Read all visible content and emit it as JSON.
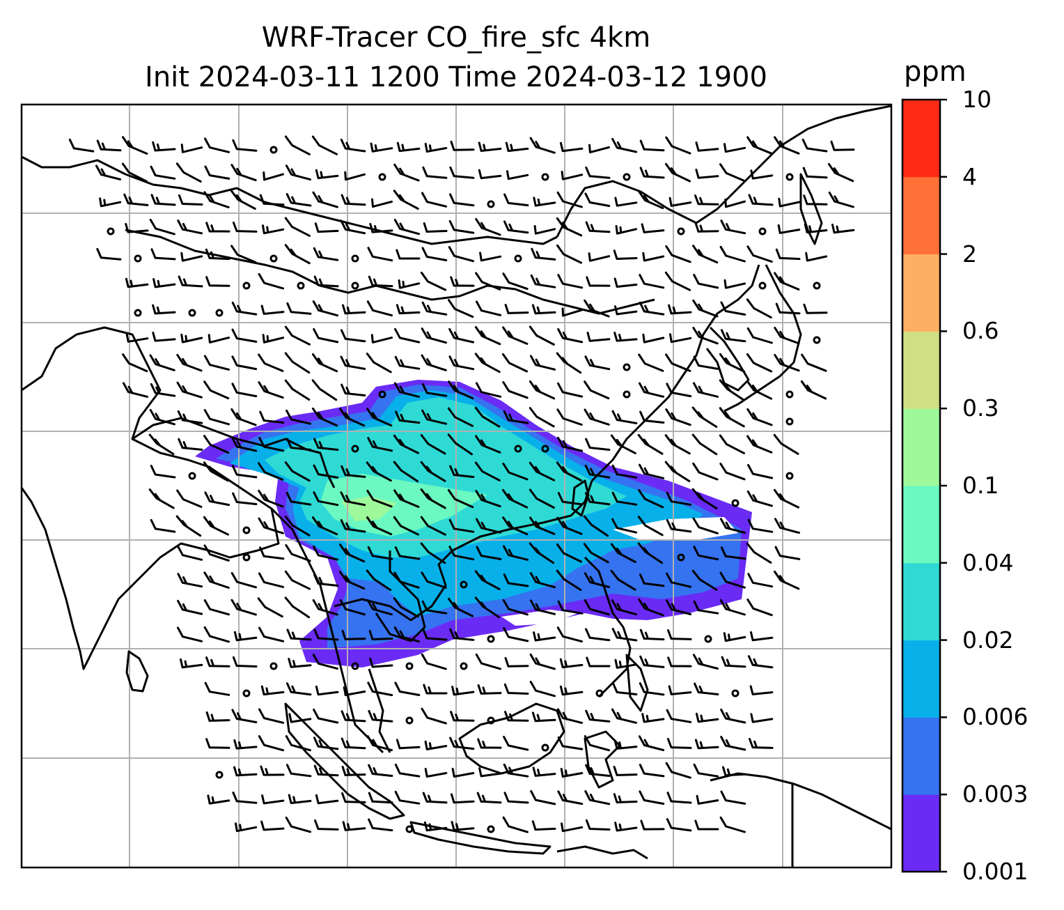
{
  "title": {
    "line1": "WRF-Tracer CO_fire_sfc 4km",
    "line2": "Init 2024-03-11 1200 Time 2024-03-12 1900"
  },
  "colorbar": {
    "unit": "ppm",
    "levels": [
      "0.001",
      "0.003",
      "0.006",
      "0.02",
      "0.04",
      "0.1",
      "0.3",
      "0.6",
      "2",
      "4",
      "10"
    ],
    "colors": [
      "#6a2bf5",
      "#3573f0",
      "#08b0ea",
      "#2fdad5",
      "#6bf9c1",
      "#9ef99b",
      "#d0df84",
      "#fdb063",
      "#ff7137",
      "#ff2a16"
    ]
  },
  "map": {
    "projection_grid": "lat/lon gridlines",
    "features": [
      "coastlines",
      "country borders",
      "wind barbs",
      "fire CO tracer plume"
    ],
    "colors": {
      "gridline": "#b0b0b0",
      "border": "#000000",
      "barb": "#000000"
    }
  }
}
